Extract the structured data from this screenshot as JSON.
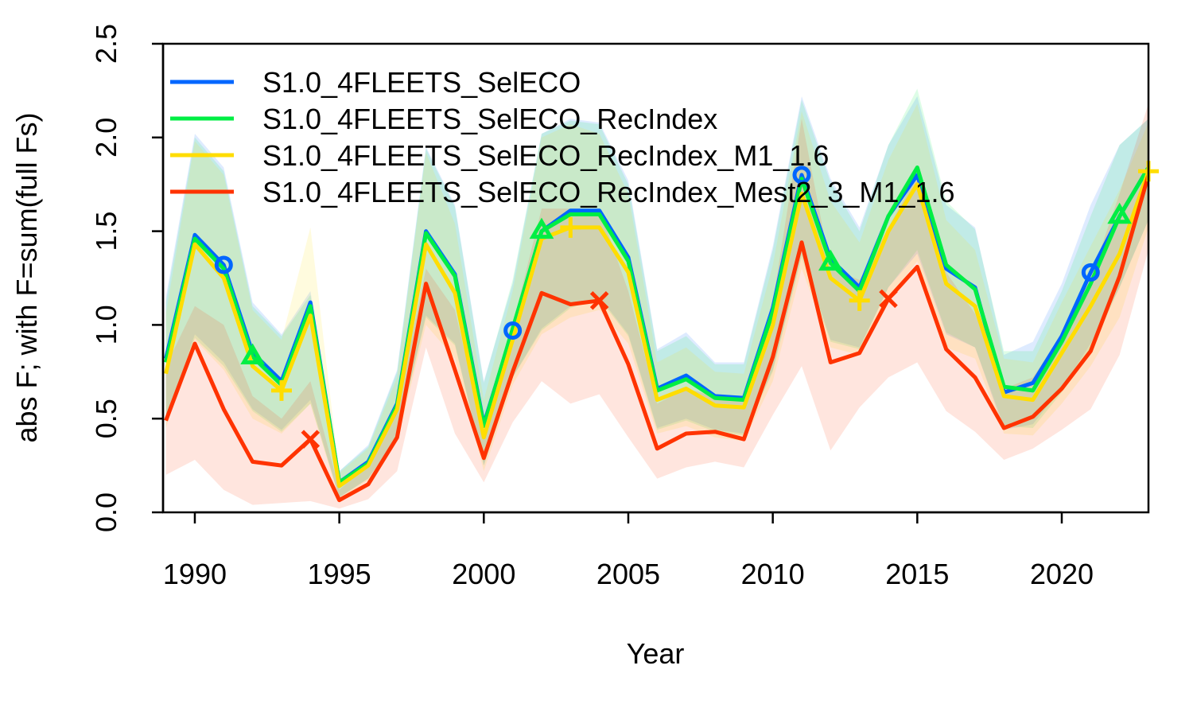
{
  "chart_data": {
    "type": "line",
    "xlabel": "Year",
    "ylabel": "abs F; with F=sum(full Fs)",
    "xlim": [
      1988.9,
      2023
    ],
    "ylim": [
      0,
      2.5
    ],
    "xticks": [
      1990,
      1995,
      2000,
      2005,
      2010,
      2015,
      2020
    ],
    "yticks": [
      0.0,
      0.5,
      1.0,
      1.5,
      2.0,
      2.5
    ],
    "ytick_labels": [
      "0.0",
      "0.5",
      "1.0",
      "1.5",
      "2.0",
      "2.5"
    ],
    "legend_position": "top-left",
    "grid": false,
    "x": [
      1989,
      1990,
      1991,
      1992,
      1993,
      1994,
      1995,
      1996,
      1997,
      1998,
      1999,
      2000,
      2001,
      2002,
      2003,
      2004,
      2005,
      2006,
      2007,
      2008,
      2009,
      2010,
      2011,
      2012,
      2013,
      2014,
      2015,
      2016,
      2017,
      2018,
      2019,
      2020,
      2021,
      2022,
      2023
    ],
    "series": [
      {
        "name": "S1.0_4FLEETS_SelECO",
        "color": "#0066ff",
        "marker": "circle",
        "marker_years": [
          1991,
          2001,
          2011,
          2021
        ],
        "values": [
          0.82,
          1.48,
          1.32,
          0.85,
          0.7,
          1.12,
          0.16,
          0.27,
          0.58,
          1.5,
          1.27,
          0.47,
          0.97,
          1.5,
          1.61,
          1.61,
          1.36,
          0.66,
          0.73,
          0.62,
          0.61,
          1.09,
          1.8,
          1.35,
          1.2,
          1.58,
          1.8,
          1.3,
          1.2,
          0.64,
          0.69,
          0.94,
          1.28,
          1.58,
          1.84
        ],
        "band_low": [
          0.48,
          0.95,
          0.8,
          0.55,
          0.44,
          0.6,
          0.08,
          0.18,
          0.4,
          1.05,
          0.9,
          0.25,
          0.72,
          0.98,
          1.1,
          1.15,
          0.95,
          0.45,
          0.5,
          0.44,
          0.42,
          0.76,
          1.38,
          0.92,
          0.88,
          1.2,
          1.38,
          0.95,
          0.88,
          0.44,
          0.47,
          0.66,
          0.9,
          1.2,
          1.56
        ],
        "band_high": [
          1.15,
          2.02,
          1.84,
          1.12,
          0.95,
          1.18,
          0.22,
          0.36,
          0.76,
          1.95,
          1.64,
          0.7,
          1.22,
          2.02,
          2.1,
          2.08,
          1.77,
          0.87,
          0.96,
          0.8,
          0.8,
          1.42,
          2.22,
          1.78,
          1.52,
          1.96,
          2.22,
          1.64,
          1.52,
          0.84,
          0.91,
          1.22,
          1.64,
          1.96,
          2.1
        ]
      },
      {
        "name": "S1.0_4FLEETS_SelECO_RecIndex",
        "color": "#00ee44",
        "marker": "triangle",
        "marker_years": [
          1992,
          2002,
          2012,
          2022
        ],
        "values": [
          0.8,
          1.46,
          1.3,
          0.83,
          0.68,
          1.1,
          0.16,
          0.26,
          0.57,
          1.49,
          1.26,
          0.46,
          0.98,
          1.5,
          1.59,
          1.59,
          1.34,
          0.65,
          0.71,
          0.61,
          0.6,
          1.07,
          1.78,
          1.33,
          1.18,
          1.58,
          1.84,
          1.32,
          1.19,
          0.67,
          0.65,
          0.91,
          1.22,
          1.58,
          1.84
        ],
        "band_low": [
          0.48,
          0.93,
          0.78,
          0.54,
          0.43,
          0.58,
          0.08,
          0.18,
          0.4,
          1.04,
          0.89,
          0.25,
          0.72,
          0.97,
          1.09,
          1.14,
          0.94,
          0.44,
          0.49,
          0.43,
          0.41,
          0.75,
          1.36,
          0.91,
          0.87,
          1.2,
          1.4,
          0.96,
          0.88,
          0.46,
          0.45,
          0.64,
          0.86,
          1.2,
          1.56
        ],
        "band_high": [
          1.12,
          2.0,
          1.82,
          1.1,
          0.94,
          1.16,
          0.22,
          0.35,
          0.75,
          1.94,
          1.63,
          0.69,
          1.24,
          2.02,
          2.09,
          2.07,
          1.75,
          0.86,
          0.94,
          0.79,
          0.79,
          1.4,
          2.2,
          1.76,
          1.5,
          1.96,
          2.26,
          1.66,
          1.51,
          0.86,
          0.86,
          1.18,
          1.58,
          1.96,
          2.1
        ]
      },
      {
        "name": "S1.0_4FLEETS_SelECO_RecIndex_M1_1.6",
        "color": "#ffdd00",
        "marker": "plus",
        "marker_years": [
          1993,
          2003,
          2013,
          2023
        ],
        "values": [
          0.74,
          1.43,
          1.25,
          0.78,
          0.65,
          1.05,
          0.14,
          0.25,
          0.55,
          1.43,
          1.17,
          0.4,
          0.92,
          1.46,
          1.52,
          1.52,
          1.28,
          0.6,
          0.66,
          0.57,
          0.56,
          1.0,
          1.7,
          1.25,
          1.13,
          1.5,
          1.75,
          1.22,
          1.1,
          0.62,
          0.6,
          0.85,
          1.1,
          1.38,
          1.82
        ],
        "band_low": [
          0.45,
          0.92,
          0.76,
          0.5,
          0.42,
          0.58,
          0.07,
          0.17,
          0.38,
          1.0,
          0.82,
          0.22,
          0.68,
          0.95,
          1.04,
          1.08,
          0.9,
          0.42,
          0.46,
          0.4,
          0.38,
          0.7,
          1.3,
          0.88,
          0.84,
          1.14,
          1.34,
          0.88,
          0.82,
          0.42,
          0.41,
          0.58,
          0.78,
          1.04,
          1.52
        ],
        "band_high": [
          1.06,
          1.98,
          1.8,
          1.08,
          0.92,
          1.52,
          0.21,
          0.34,
          0.72,
          1.92,
          1.54,
          0.6,
          1.18,
          2.0,
          2.07,
          2.02,
          1.7,
          0.8,
          0.88,
          0.75,
          0.74,
          1.32,
          2.14,
          1.66,
          1.44,
          1.88,
          2.18,
          1.56,
          1.4,
          0.82,
          0.8,
          1.12,
          1.42,
          1.72,
          2.08
        ]
      },
      {
        "name": "S1.0_4FLEETS_SelECO_RecIndex_Mest2_3_M1_1.6",
        "color": "#ff3300",
        "marker": "cross",
        "marker_years": [
          1994,
          2004,
          2014
        ],
        "values": [
          0.49,
          0.9,
          0.55,
          0.27,
          0.25,
          0.39,
          0.065,
          0.15,
          0.4,
          1.22,
          0.76,
          0.29,
          0.75,
          1.17,
          1.11,
          1.13,
          0.79,
          0.34,
          0.42,
          0.43,
          0.39,
          0.83,
          1.44,
          0.8,
          0.85,
          1.14,
          1.31,
          0.87,
          0.72,
          0.45,
          0.51,
          0.66,
          0.86,
          1.26,
          1.8
        ],
        "band_low": [
          0.2,
          0.28,
          0.12,
          0.04,
          0.05,
          0.06,
          0.02,
          0.07,
          0.22,
          0.88,
          0.42,
          0.16,
          0.48,
          0.7,
          0.58,
          0.63,
          0.4,
          0.18,
          0.24,
          0.27,
          0.24,
          0.52,
          0.78,
          0.33,
          0.56,
          0.72,
          0.8,
          0.54,
          0.43,
          0.28,
          0.34,
          0.44,
          0.55,
          0.84,
          1.4
        ],
        "band_high": [
          0.78,
          1.1,
          1.0,
          0.62,
          0.5,
          0.7,
          0.12,
          0.26,
          0.55,
          1.3,
          1.08,
          0.42,
          1.0,
          1.62,
          1.62,
          1.62,
          1.18,
          0.58,
          0.66,
          0.62,
          0.6,
          1.12,
          2.1,
          1.3,
          1.24,
          1.52,
          1.8,
          1.28,
          1.06,
          0.66,
          0.72,
          0.95,
          1.25,
          1.7,
          2.18
        ]
      }
    ]
  }
}
